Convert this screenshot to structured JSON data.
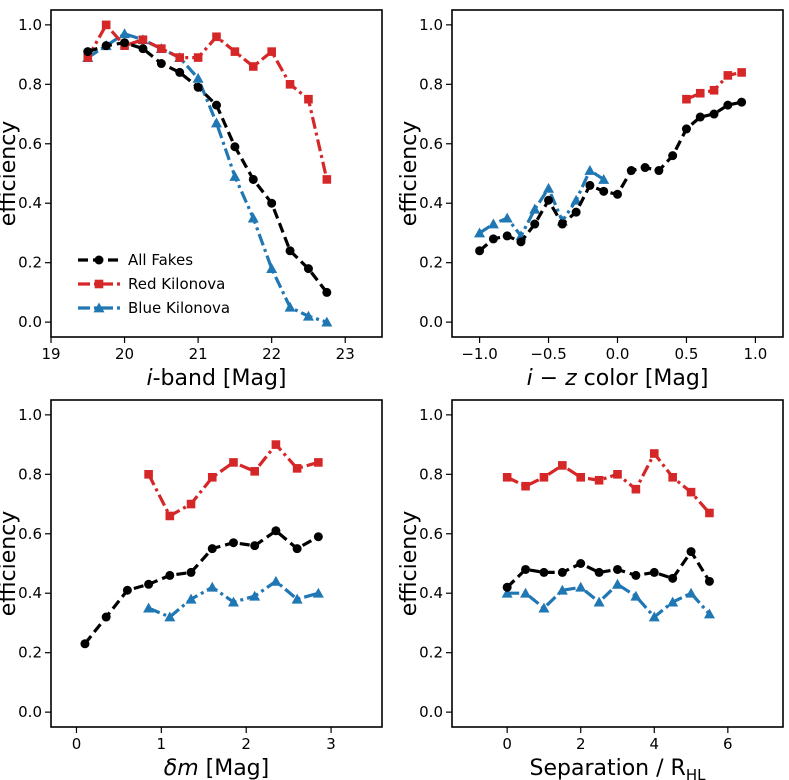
{
  "colors": {
    "all": "#000000",
    "red": "#d62728",
    "blue": "#1f77b4"
  },
  "legend": {
    "entries": [
      {
        "key": "all",
        "label": "All Fakes",
        "marker": "circle",
        "dash": "dash"
      },
      {
        "key": "red",
        "label": "Red Kilonova",
        "marker": "square",
        "dash": "dashdot"
      },
      {
        "key": "blue",
        "label": "Blue Kilonova",
        "marker": "triangle",
        "dash": "dashdot"
      }
    ]
  },
  "chart_data": [
    {
      "type": "line",
      "xlabel": {
        "italic": "i",
        "rest": "-band [Mag]"
      },
      "ylabel": "efficiency",
      "xlim": [
        19,
        23.5
      ],
      "ylim": [
        -0.05,
        1.05
      ],
      "xticks": [
        19,
        20,
        21,
        22,
        23
      ],
      "xtick_labels": [
        "19",
        "20",
        "21",
        "22",
        "23"
      ],
      "yticks": [
        0.0,
        0.2,
        0.4,
        0.6,
        0.8,
        1.0
      ],
      "ytick_labels": [
        "0.0",
        "0.2",
        "0.4",
        "0.6",
        "0.8",
        "1.0"
      ],
      "legend": "lower-left",
      "series": [
        {
          "key": "all",
          "name": "All Fakes",
          "x": [
            19.5,
            19.75,
            20.0,
            20.25,
            20.5,
            20.75,
            21.0,
            21.25,
            21.5,
            21.75,
            22.0,
            22.25,
            22.5,
            22.75
          ],
          "y": [
            0.91,
            0.93,
            0.94,
            0.92,
            0.87,
            0.84,
            0.79,
            0.73,
            0.59,
            0.48,
            0.4,
            0.24,
            0.18,
            0.1
          ]
        },
        {
          "key": "red",
          "name": "Red Kilonova",
          "x": [
            19.5,
            19.75,
            20.0,
            20.25,
            20.5,
            20.75,
            21.0,
            21.25,
            21.5,
            21.75,
            22.0,
            22.25,
            22.5,
            22.75
          ],
          "y": [
            0.89,
            1.0,
            0.93,
            0.95,
            0.92,
            0.89,
            0.89,
            0.96,
            0.91,
            0.86,
            0.91,
            0.8,
            0.75,
            0.48
          ]
        },
        {
          "key": "blue",
          "name": "Blue Kilonova",
          "x": [
            19.5,
            19.75,
            20.0,
            20.25,
            20.5,
            20.75,
            21.0,
            21.25,
            21.5,
            21.75,
            22.0,
            22.25,
            22.5,
            22.75
          ],
          "y": [
            0.89,
            0.93,
            0.97,
            0.95,
            0.92,
            0.89,
            0.82,
            0.67,
            0.49,
            0.35,
            0.18,
            0.05,
            0.02,
            0.0
          ]
        }
      ]
    },
    {
      "type": "line",
      "xlabel": {
        "italic": "i − z",
        "rest": " color [Mag]"
      },
      "ylabel": "efficiency",
      "xlim": [
        -1.2,
        1.2
      ],
      "ylim": [
        -0.05,
        1.05
      ],
      "xticks": [
        -1.0,
        -0.5,
        0.0,
        0.5,
        1.0
      ],
      "xtick_labels": [
        "−1.0",
        "−0.5",
        "0.0",
        "0.5",
        "1.0"
      ],
      "yticks": [
        0.0,
        0.2,
        0.4,
        0.6,
        0.8,
        1.0
      ],
      "ytick_labels": [
        "0.0",
        "0.2",
        "0.4",
        "0.6",
        "0.8",
        "1.0"
      ],
      "series": [
        {
          "key": "all",
          "name": "All Fakes",
          "x": [
            -1.0,
            -0.9,
            -0.8,
            -0.7,
            -0.6,
            -0.5,
            -0.4,
            -0.3,
            -0.2,
            -0.1,
            0.0,
            0.1,
            0.2,
            0.3,
            0.4,
            0.5,
            0.6,
            0.7,
            0.8,
            0.9
          ],
          "y": [
            0.24,
            0.28,
            0.29,
            0.27,
            0.33,
            0.41,
            0.33,
            0.37,
            0.46,
            0.44,
            0.43,
            0.51,
            0.52,
            0.51,
            0.56,
            0.65,
            0.69,
            0.7,
            0.73,
            0.74
          ]
        },
        {
          "key": "red",
          "name": "Red Kilonova",
          "x": [
            0.5,
            0.6,
            0.7,
            0.8,
            0.9
          ],
          "y": [
            0.75,
            0.77,
            0.78,
            0.83,
            0.84
          ]
        },
        {
          "key": "blue",
          "name": "Blue Kilonova",
          "x": [
            -1.0,
            -0.9,
            -0.8,
            -0.7,
            -0.6,
            -0.5,
            -0.4,
            -0.3,
            -0.2,
            -0.1
          ],
          "y": [
            0.3,
            0.33,
            0.35,
            0.29,
            0.38,
            0.45,
            0.34,
            0.41,
            0.51,
            0.48
          ]
        }
      ]
    },
    {
      "type": "line",
      "xlabel": {
        "italic": "δm",
        "rest": " [Mag]"
      },
      "ylabel": "efficiency",
      "xlim": [
        -0.3,
        3.6
      ],
      "ylim": [
        -0.05,
        1.05
      ],
      "xticks": [
        0,
        1,
        2,
        3
      ],
      "xtick_labels": [
        "0",
        "1",
        "2",
        "3"
      ],
      "yticks": [
        0.0,
        0.2,
        0.4,
        0.6,
        0.8,
        1.0
      ],
      "ytick_labels": [
        "0.0",
        "0.2",
        "0.4",
        "0.6",
        "0.8",
        "1.0"
      ],
      "series": [
        {
          "key": "all",
          "name": "All Fakes",
          "x": [
            0.1,
            0.35,
            0.6,
            0.85,
            1.1,
            1.35,
            1.6,
            1.85,
            2.1,
            2.35,
            2.6,
            2.85
          ],
          "y": [
            0.23,
            0.32,
            0.41,
            0.43,
            0.46,
            0.47,
            0.55,
            0.57,
            0.56,
            0.61,
            0.55,
            0.59
          ]
        },
        {
          "key": "red",
          "name": "Red Kilonova",
          "x": [
            0.85,
            1.1,
            1.35,
            1.6,
            1.85,
            2.1,
            2.35,
            2.6,
            2.85
          ],
          "y": [
            0.8,
            0.66,
            0.7,
            0.79,
            0.84,
            0.81,
            0.9,
            0.82,
            0.84
          ]
        },
        {
          "key": "blue",
          "name": "Blue Kilonova",
          "x": [
            0.85,
            1.1,
            1.35,
            1.6,
            1.85,
            2.1,
            2.35,
            2.6,
            2.85
          ],
          "y": [
            0.35,
            0.32,
            0.38,
            0.42,
            0.37,
            0.39,
            0.44,
            0.38,
            0.4
          ]
        }
      ]
    },
    {
      "type": "line",
      "xlabel": {
        "italic": "",
        "rest": "Separation / R",
        "sub": "HL"
      },
      "ylabel": "efficiency",
      "xlim": [
        -1.5,
        7.5
      ],
      "ylim": [
        -0.05,
        1.05
      ],
      "xticks": [
        0,
        2,
        4,
        6
      ],
      "xtick_labels": [
        "0",
        "2",
        "4",
        "6"
      ],
      "yticks": [
        0.0,
        0.2,
        0.4,
        0.6,
        0.8,
        1.0
      ],
      "ytick_labels": [
        "0.0",
        "0.2",
        "0.4",
        "0.6",
        "0.8",
        "1.0"
      ],
      "series": [
        {
          "key": "all",
          "name": "All Fakes",
          "x": [
            0.0,
            0.5,
            1.0,
            1.5,
            2.0,
            2.5,
            3.0,
            3.5,
            4.0,
            4.5,
            5.0,
            5.5
          ],
          "y": [
            0.42,
            0.48,
            0.47,
            0.47,
            0.5,
            0.47,
            0.48,
            0.46,
            0.47,
            0.45,
            0.54,
            0.44
          ]
        },
        {
          "key": "red",
          "name": "Red Kilonova",
          "x": [
            0.0,
            0.5,
            1.0,
            1.5,
            2.0,
            2.5,
            3.0,
            3.5,
            4.0,
            4.5,
            5.0,
            5.5
          ],
          "y": [
            0.79,
            0.76,
            0.79,
            0.83,
            0.79,
            0.78,
            0.8,
            0.75,
            0.87,
            0.79,
            0.74,
            0.67
          ]
        },
        {
          "key": "blue",
          "name": "Blue Kilonova",
          "x": [
            0.0,
            0.5,
            1.0,
            1.5,
            2.0,
            2.5,
            3.0,
            3.5,
            4.0,
            4.5,
            5.0,
            5.5
          ],
          "y": [
            0.4,
            0.4,
            0.35,
            0.41,
            0.42,
            0.37,
            0.43,
            0.39,
            0.32,
            0.37,
            0.4,
            0.33
          ]
        }
      ]
    }
  ]
}
